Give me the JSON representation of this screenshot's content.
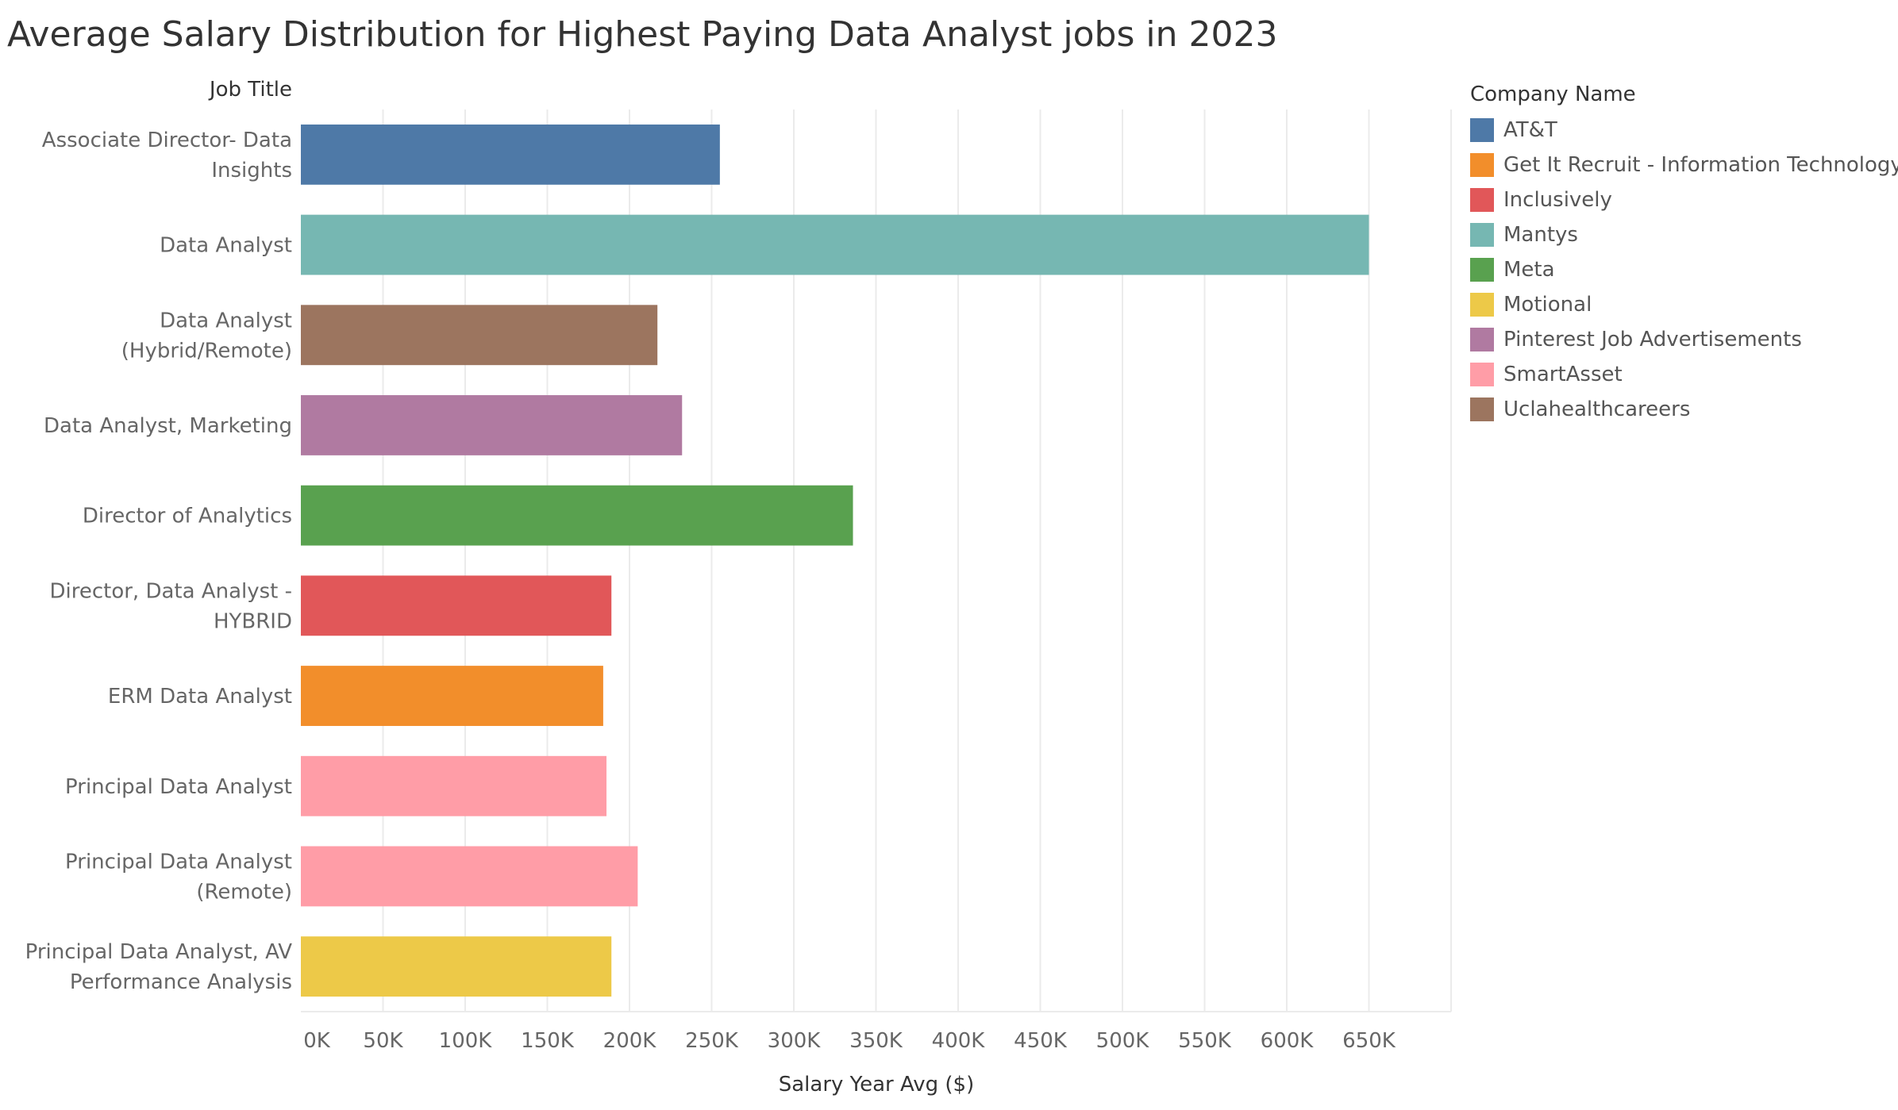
{
  "chart_data": {
    "type": "bar",
    "orientation": "horizontal",
    "title": "Average Salary Distribution for Highest Paying Data Analyst jobs in 2023",
    "ylabel": "Job Title",
    "xlabel": "Salary Year Avg ($)",
    "xlim": [
      0,
      700000
    ],
    "xticks": [
      0,
      50000,
      100000,
      150000,
      200000,
      250000,
      300000,
      350000,
      400000,
      450000,
      500000,
      550000,
      600000,
      650000
    ],
    "xtick_labels": [
      "0K",
      "50K",
      "100K",
      "150K",
      "200K",
      "250K",
      "300K",
      "350K",
      "400K",
      "450K",
      "500K",
      "550K",
      "600K",
      "650K"
    ],
    "grid": "vertical",
    "legend_placement": "right",
    "bars": [
      {
        "label_lines": [
          "Associate Director- Data",
          "Insights"
        ],
        "value": 255000,
        "company": "AT&T"
      },
      {
        "label_lines": [
          "Data Analyst"
        ],
        "value": 650000,
        "company": "Mantys"
      },
      {
        "label_lines": [
          "Data Analyst",
          "(Hybrid/Remote)"
        ],
        "value": 217000,
        "company": "Uclahealthcareers"
      },
      {
        "label_lines": [
          "Data Analyst, Marketing"
        ],
        "value": 232000,
        "company": "Pinterest Job Advertisements"
      },
      {
        "label_lines": [
          "Director of Analytics"
        ],
        "value": 336000,
        "company": "Meta"
      },
      {
        "label_lines": [
          "Director, Data Analyst -",
          "HYBRID"
        ],
        "value": 189000,
        "company": "Inclusively"
      },
      {
        "label_lines": [
          "ERM Data Analyst"
        ],
        "value": 184000,
        "company": "Get It Recruit - Information Technology"
      },
      {
        "label_lines": [
          "Principal Data Analyst"
        ],
        "value": 186000,
        "company": "SmartAsset"
      },
      {
        "label_lines": [
          "Principal Data Analyst",
          "(Remote)"
        ],
        "value": 205000,
        "company": "SmartAsset"
      },
      {
        "label_lines": [
          "Principal Data Analyst, AV",
          "Performance Analysis"
        ],
        "value": 189000,
        "company": "Motional"
      }
    ],
    "legend": {
      "title": "Company Name",
      "items": [
        {
          "name": "AT&T",
          "color": "#4e79a7"
        },
        {
          "name": "Get It Recruit - Information Technology",
          "color": "#f28e2b"
        },
        {
          "name": "Inclusively",
          "color": "#e15759"
        },
        {
          "name": "Mantys",
          "color": "#76b7b2"
        },
        {
          "name": "Meta",
          "color": "#59a14f"
        },
        {
          "name": "Motional",
          "color": "#edc948"
        },
        {
          "name": "Pinterest Job Advertisements",
          "color": "#b07aa1"
        },
        {
          "name": "SmartAsset",
          "color": "#ff9da7"
        },
        {
          "name": "Uclahealthcareers",
          "color": "#9c755f"
        }
      ]
    }
  }
}
